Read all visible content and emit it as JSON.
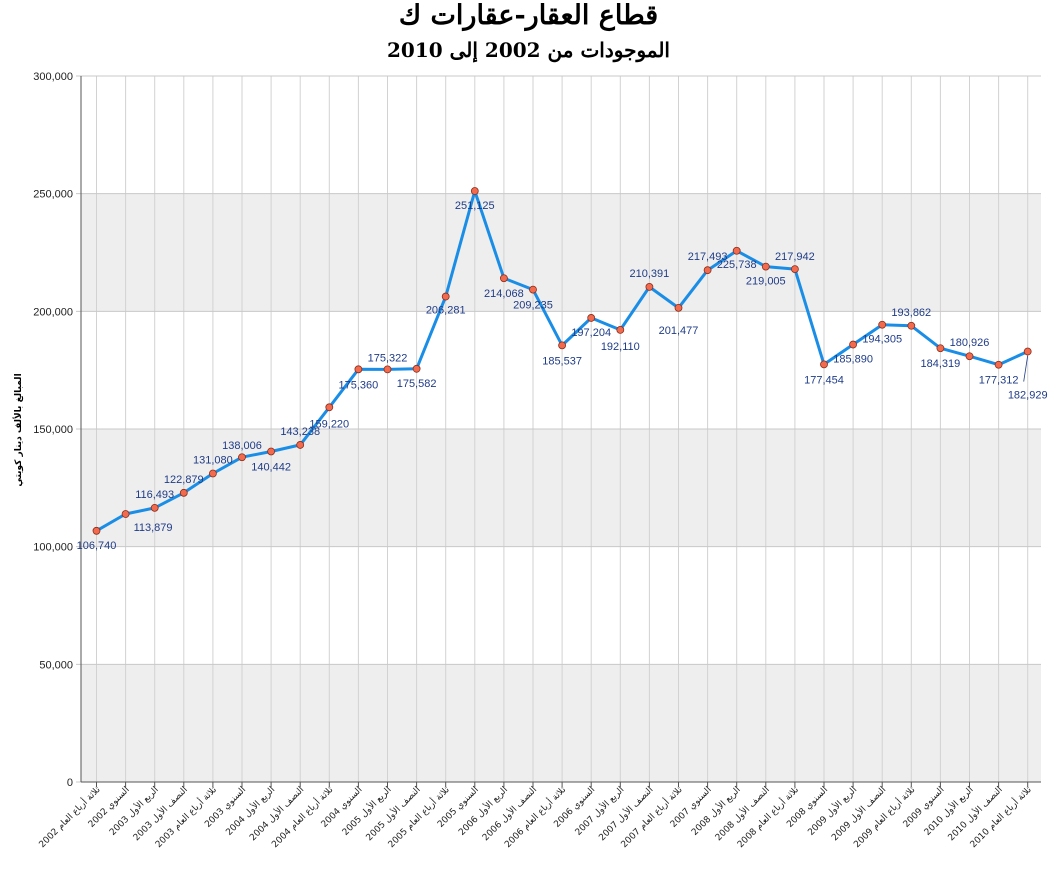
{
  "title": "قطاع العقار-عقارات ك",
  "subtitle": "الموجودات من 2002 إلى 2010",
  "chart_data": {
    "type": "line",
    "title": "قطاع العقار-عقارات ك",
    "subtitle": "الموجودات من 2002 إلى 2010",
    "xlabel": "",
    "ylabel": "المبالغ بالألف دينار كويتي",
    "ylim": [
      0,
      300000
    ],
    "yticks": [
      "0",
      "50,000",
      "100,000",
      "150,000",
      "200,000",
      "250,000",
      "300,000"
    ],
    "grid": true,
    "legend": "none",
    "line_color": "#1a8ee6",
    "marker_color": "#f26b4f",
    "band_color": "#eeeeee",
    "categories": [
      "ثلاثة أرباع العام 2002",
      "السنوي 2002",
      "الربع الأول 2003",
      "النصف الأول 2003",
      "ثلاثة أرباع العام 2003",
      "السنوي 2003",
      "الربع الأول 2004",
      "النصف الأول 2004",
      "ثلاثة أرباع العام 2004",
      "السنوي 2004",
      "الربع الأول 2005",
      "النصف الأول 2005",
      "ثلاثة أرباع العام 2005",
      "السنوي 2005",
      "الربع الأول 2006",
      "النصف الأول 2006",
      "ثلاثة أرباع العام 2006",
      "السنوي 2006",
      "الربع الأول 2007",
      "النصف الأول 2007",
      "ثلاثة أرباع العام 2007",
      "السنوي 2007",
      "الربع الأول 2008",
      "النصف الأول 2008",
      "ثلاثة أرباع العام 2008",
      "السنوي 2008",
      "الربع الأول 2009",
      "النصف الأول 2009",
      "ثلاثة أرباع العام 2009",
      "السنوي 2009",
      "الربع الأول 2010",
      "النصف الأول 2010",
      "ثلاثة أرباع العام 2010"
    ],
    "values": [
      106740,
      113879,
      116493,
      122879,
      131080,
      138006,
      140442,
      143238,
      159220,
      175360,
      175322,
      175582,
      206281,
      251125,
      214068,
      209235,
      185537,
      197204,
      192110,
      210391,
      201477,
      217493,
      225738,
      219005,
      217942,
      177454,
      185890,
      194305,
      193862,
      184319,
      180926,
      177312,
      182929
    ],
    "labels": [
      "106,740",
      "113,879",
      "116,493",
      "122,879",
      "131,080",
      "138,006",
      "140,442",
      "143,238",
      "159,220",
      "175,360",
      "175,322",
      "175,582",
      "206,281",
      "251,125",
      "214,068",
      "209,235",
      "185,537",
      "197,204",
      "192,110",
      "210,391",
      "201,477",
      "217,493",
      "225,738",
      "219,005",
      "217,942",
      "177,454",
      "185,890",
      "194,305",
      "193,862",
      "184,319",
      "180,926",
      "177,312",
      "182,929"
    ]
  }
}
